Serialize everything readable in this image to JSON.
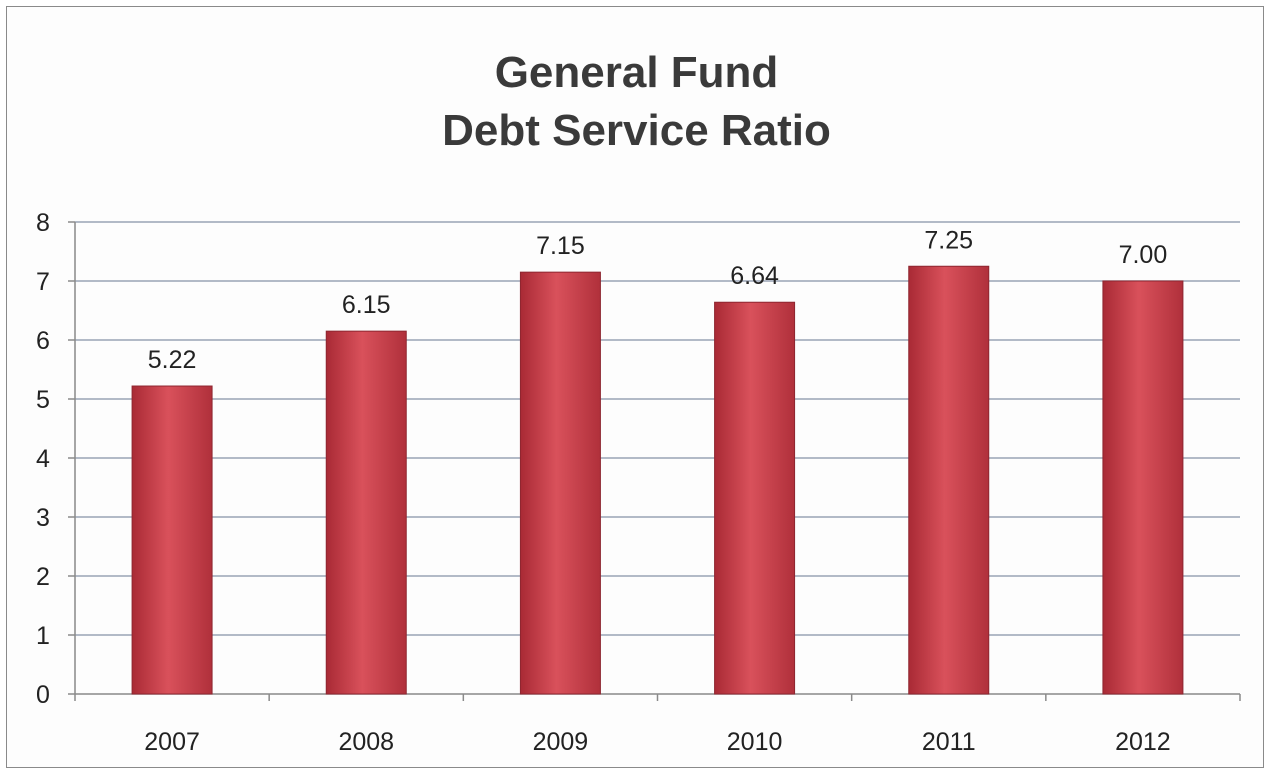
{
  "chart_data": {
    "type": "bar",
    "title_lines": [
      "General Fund",
      "Debt Service Ratio"
    ],
    "categories": [
      "2007",
      "2008",
      "2009",
      "2010",
      "2011",
      "2012"
    ],
    "values": [
      5.22,
      6.15,
      7.15,
      6.64,
      7.25,
      7.0
    ],
    "data_labels": [
      "5.22",
      "6.15",
      "7.15",
      "6.64",
      "7.25",
      "7.00"
    ],
    "y_ticks": [
      "0",
      "1",
      "2",
      "3",
      "4",
      "5",
      "6",
      "7",
      "8"
    ],
    "ylim": [
      0,
      8
    ],
    "xlabel": "",
    "ylabel": "",
    "grid": true,
    "legend": "none",
    "bar_color": "#c8414b"
  }
}
